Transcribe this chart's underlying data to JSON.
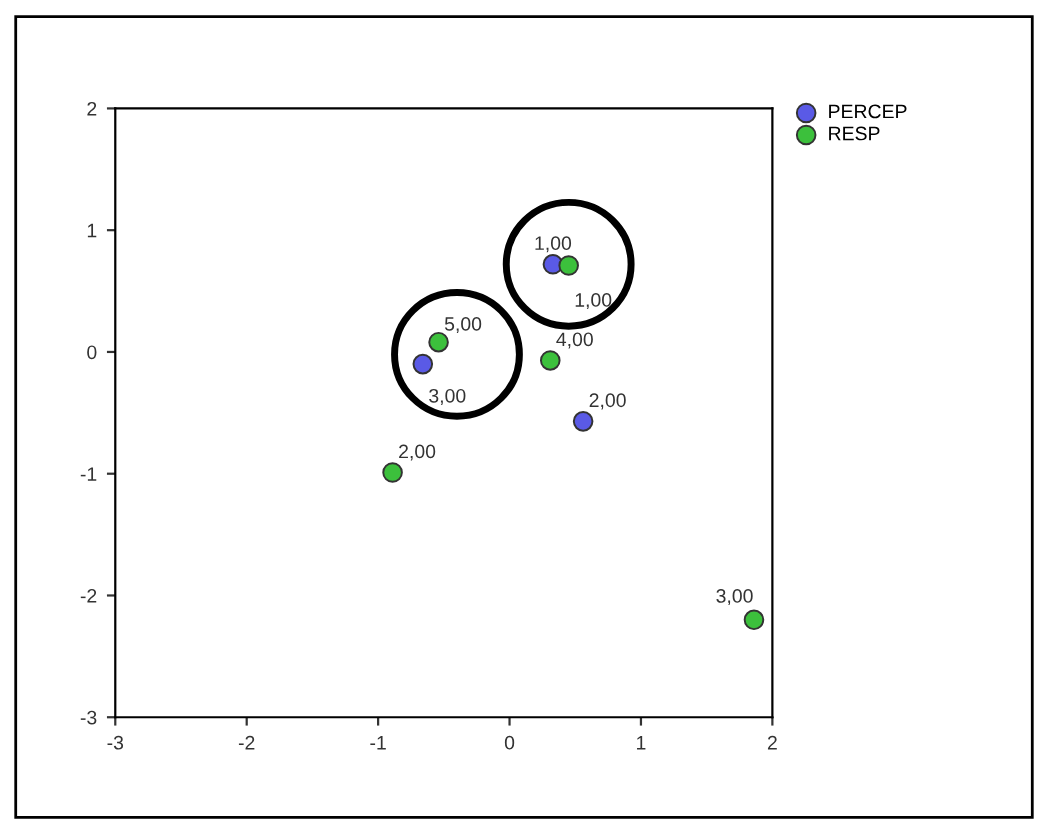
{
  "chart_data": {
    "type": "scatter",
    "xlim": [
      -3,
      2
    ],
    "ylim": [
      -3,
      2
    ],
    "xticks": [
      -3,
      -2,
      -1,
      0,
      1,
      2
    ],
    "yticks": [
      -3,
      -2,
      -1,
      0,
      1,
      2
    ],
    "grid": false,
    "legend": "top right",
    "marker": "circle",
    "series": [
      {
        "name": "PERCEP",
        "color": "#5a5ae6",
        "x": [
          0.33,
          -0.66,
          0.56
        ],
        "values": [
          0.72,
          -0.1,
          -0.57
        ]
      },
      {
        "name": "RESP",
        "color": "#3cc03c",
        "x": [
          0.45,
          -0.54,
          0.31,
          -0.89,
          1.86
        ],
        "values": [
          0.71,
          0.08,
          -0.07,
          -0.99,
          -2.2
        ]
      }
    ],
    "annotations": [
      {
        "text": "1,00",
        "x": 0.33,
        "y": 0.72
      },
      {
        "text": "3,00",
        "x": -0.66,
        "y": -0.1
      },
      {
        "text": "2,00",
        "x": 0.56,
        "y": -0.57
      },
      {
        "text": "1,00",
        "x": 0.45,
        "y": 0.71
      },
      {
        "text": "5,00",
        "x": -0.54,
        "y": 0.08
      },
      {
        "text": "4,00",
        "x": 0.31,
        "y": -0.07
      },
      {
        "text": "2,00",
        "x": -0.89,
        "y": -0.99
      },
      {
        "text": "3,00",
        "x": 1.86,
        "y": -2.2
      }
    ]
  }
}
